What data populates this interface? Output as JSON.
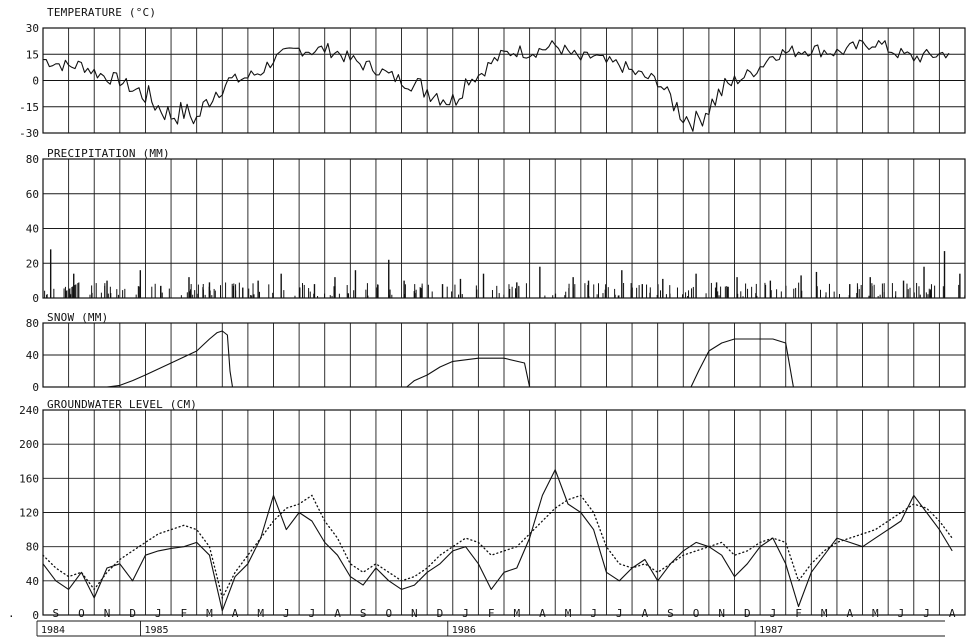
{
  "chart_data": [
    {
      "type": "line",
      "title": "TEMPERATURE (°C)",
      "ylim": [
        -30,
        30
      ],
      "yticks": [
        "30",
        "15",
        "0",
        "-15",
        "-30"
      ],
      "series": [
        {
          "x": [
            0,
            0.5,
            1,
            1.5,
            2,
            2.5,
            3,
            3.5,
            4,
            4.5,
            5,
            5.5,
            6,
            6.5,
            7,
            7.5,
            8,
            8.5,
            9,
            9.5,
            10,
            10.5,
            11,
            11.5,
            12,
            12.5,
            13,
            13.5,
            14,
            14.5,
            15,
            15.5,
            16,
            16.5,
            17,
            17.5,
            18,
            18.5,
            19,
            19.5,
            20,
            20.5,
            21,
            21.5,
            22,
            22.5,
            23,
            23.5,
            24,
            24.5,
            25,
            25.5,
            26,
            26.5,
            27,
            27.5,
            28,
            28.5,
            29,
            29.5,
            30,
            30.5,
            31,
            31.5,
            32,
            32.5,
            33,
            33.5,
            34,
            34.5,
            35,
            35.5
          ],
          "values": [
            12,
            10,
            8,
            9,
            5,
            2,
            0,
            -5,
            -8,
            -15,
            -20,
            -18,
            -22,
            -10,
            -2,
            0,
            2,
            5,
            12,
            15,
            18,
            17,
            18,
            16,
            12,
            9,
            7,
            3,
            0,
            -3,
            -5,
            -8,
            -12,
            0,
            3,
            10,
            15,
            17,
            16,
            18,
            20,
            16,
            12,
            14,
            10,
            9,
            5,
            2,
            0,
            -10,
            -20,
            -24,
            -15,
            -6,
            0,
            3,
            8,
            15,
            16,
            17,
            18,
            17,
            16,
            18,
            20,
            22,
            18,
            15,
            13,
            14,
            15,
            17
          ]
        }
      ]
    },
    {
      "type": "bar",
      "title": "PRECIPITATION (MM)",
      "ylim": [
        0,
        80
      ],
      "yticks": [
        "80",
        "60",
        "40",
        "20",
        "0"
      ],
      "series": [
        {
          "x": [
            0.3,
            1.2,
            2.5,
            3.8,
            4.6,
            5.7,
            6.5,
            7.8,
            8.4,
            9.3,
            10.6,
            11.4,
            12.2,
            13.5,
            14.1,
            15.6,
            16.3,
            17.2,
            18.5,
            19.4,
            20.7,
            21.3,
            22.6,
            23.4,
            24.2,
            25.5,
            26.3,
            27.1,
            28.4,
            29.6,
            30.2,
            31.5,
            32.3,
            33.6,
            34.4,
            35.2,
            35.8
          ],
          "values": [
            28,
            14,
            10,
            16,
            7,
            12,
            9,
            6,
            10,
            14,
            8,
            12,
            16,
            22,
            10,
            8,
            11,
            14,
            9,
            18,
            12,
            10,
            16,
            8,
            11,
            14,
            9,
            12,
            10,
            13,
            15,
            8,
            12,
            10,
            18,
            27,
            14
          ]
        }
      ]
    },
    {
      "type": "line",
      "title": "SNOW (MM)",
      "ylim": [
        0,
        80
      ],
      "yticks": [
        "80",
        "40",
        "0"
      ],
      "series": [
        {
          "x": [
            2.5,
            3.0,
            3.5,
            4.0,
            5.0,
            6.0,
            6.5,
            6.8,
            7.0,
            7.2,
            7.3,
            7.4,
            14.2,
            14.5,
            15.0,
            15.5,
            16.0,
            17.0,
            18.0,
            18.8,
            19.0,
            25.3,
            25.6,
            26.0,
            26.5,
            27.0,
            28.0,
            28.5,
            29.0,
            29.3
          ],
          "values": [
            0,
            2,
            8,
            15,
            30,
            45,
            60,
            68,
            70,
            65,
            20,
            0,
            0,
            8,
            15,
            25,
            32,
            36,
            36,
            30,
            0,
            0,
            20,
            45,
            55,
            60,
            60,
            60,
            55,
            0
          ]
        }
      ]
    },
    {
      "type": "line",
      "title": "GROUNDWATER LEVEL (CM)",
      "ylim": [
        240,
        0
      ],
      "yticks": [
        "0",
        "40",
        "80",
        "120",
        "160",
        "200",
        "240"
      ],
      "series": [
        {
          "x": [
            0,
            0.5,
            1,
            1.5,
            2,
            2.5,
            3,
            3.5,
            4,
            4.5,
            5,
            5.5,
            6,
            6.5,
            7,
            7.5,
            8,
            8.5,
            9,
            9.5,
            10,
            10.5,
            11,
            11.5,
            12,
            12.5,
            13,
            13.5,
            14,
            14.5,
            15,
            15.5,
            16,
            16.5,
            17,
            17.5,
            18,
            18.5,
            19,
            19.5,
            20,
            20.5,
            21,
            21.5,
            22,
            22.5,
            23,
            23.5,
            24,
            24.5,
            25,
            25.5,
            26,
            26.5,
            27,
            27.5,
            28,
            28.5,
            29,
            29.5,
            30,
            30.5,
            31,
            31.5,
            32,
            32.5,
            33,
            33.5,
            34,
            34.5,
            35,
            35.5
          ],
          "values": [
            60,
            40,
            30,
            50,
            20,
            55,
            60,
            40,
            70,
            75,
            78,
            80,
            85,
            70,
            5,
            45,
            60,
            90,
            140,
            100,
            120,
            110,
            85,
            70,
            45,
            35,
            55,
            40,
            30,
            35,
            50,
            60,
            75,
            80,
            60,
            30,
            50,
            55,
            90,
            140,
            170,
            130,
            120,
            100,
            50,
            40,
            55,
            65,
            40,
            60,
            75,
            85,
            80,
            70,
            45,
            60,
            80,
            90,
            60,
            10,
            50,
            70,
            90,
            85,
            80,
            90,
            100,
            110,
            140,
            120,
            100,
            75
          ]
        },
        {
          "x": [
            0,
            0.5,
            1,
            1.5,
            2,
            2.5,
            3,
            3.5,
            4,
            4.5,
            5,
            5.5,
            6,
            6.5,
            7,
            7.5,
            8,
            8.5,
            9,
            9.5,
            10,
            10.5,
            11,
            11.5,
            12,
            12.5,
            13,
            13.5,
            14,
            14.5,
            15,
            15.5,
            16,
            16.5,
            17,
            17.5,
            18,
            18.5,
            19,
            19.5,
            20,
            20.5,
            21,
            21.5,
            22,
            22.5,
            23,
            23.5,
            24,
            24.5,
            25,
            25.5,
            26,
            26.5,
            27,
            27.5,
            28,
            28.5,
            29,
            29.5,
            30,
            30.5,
            31,
            31.5,
            32,
            32.5,
            33,
            33.5,
            34,
            34.5,
            35,
            35.5
          ],
          "values": [
            70,
            55,
            45,
            50,
            30,
            50,
            65,
            75,
            85,
            95,
            100,
            105,
            100,
            80,
            20,
            50,
            70,
            90,
            110,
            125,
            130,
            140,
            110,
            90,
            60,
            50,
            60,
            50,
            40,
            45,
            55,
            70,
            80,
            90,
            85,
            70,
            75,
            80,
            95,
            110,
            125,
            135,
            140,
            120,
            80,
            60,
            55,
            60,
            50,
            60,
            70,
            75,
            80,
            85,
            70,
            75,
            85,
            90,
            85,
            40,
            60,
            75,
            85,
            90,
            95,
            100,
            110,
            120,
            130,
            125,
            110,
            90
          ]
        }
      ]
    }
  ],
  "x_axis": {
    "months": [
      "S",
      "O",
      "N",
      "D",
      "J",
      "F",
      "M",
      "A",
      "M",
      "J",
      "J",
      "A",
      "S",
      "O",
      "N",
      "D",
      "J",
      "F",
      "M",
      "A",
      "M",
      "J",
      "J",
      "A",
      "S",
      "O",
      "N",
      "D",
      "J",
      "F",
      "M",
      "A",
      "M",
      "J",
      "J",
      "A"
    ],
    "years": [
      "1984",
      "1985",
      "1986",
      "1987"
    ]
  },
  "stray_mark": "."
}
